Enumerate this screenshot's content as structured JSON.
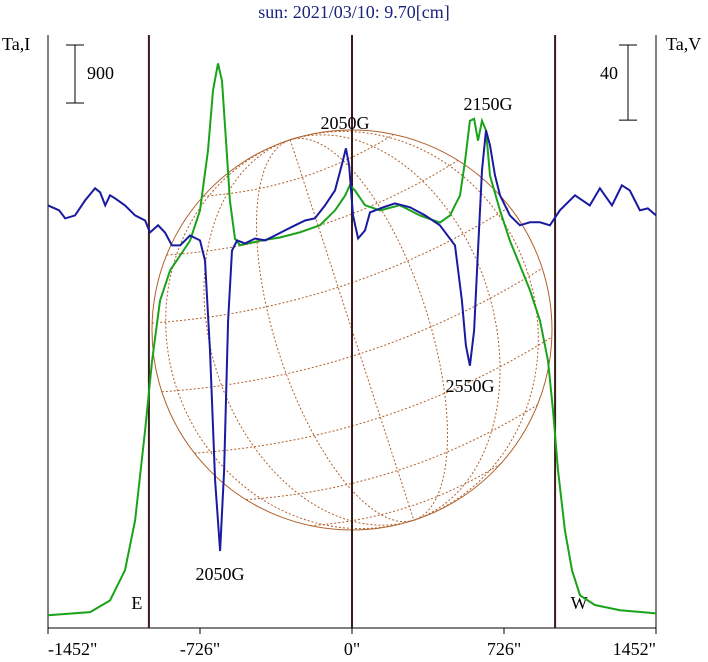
{
  "chart_data": {
    "type": "line",
    "title": "sun: 2021/03/10: 9.70[cm]",
    "y_label": "Ta,I",
    "y2_label": "Ta,V",
    "xlim": [
      -1452,
      1452
    ],
    "xticks": [
      {
        "value": -1452,
        "label": "-1452\""
      },
      {
        "value": -726,
        "label": "-726\""
      },
      {
        "value": 0,
        "label": "0\""
      },
      {
        "value": 726,
        "label": "726\""
      },
      {
        "value": 1452,
        "label": "1452\""
      }
    ],
    "ylim": [
      -150,
      9000
    ],
    "y2lim": [
      -218,
      96
    ],
    "scale_bars": [
      {
        "value": 900,
        "axis": "y"
      },
      {
        "value": 40,
        "axis": "y2"
      }
    ],
    "vlines": [
      -970,
      0,
      970
    ],
    "limb_labels": [
      "E",
      "W"
    ],
    "annotations": [
      "2050G",
      "2050G",
      "2150G",
      "2550G"
    ],
    "series": [
      {
        "name": "I",
        "color": "#1aa31a",
        "axis": "y",
        "x": [
          -1452,
          -1251,
          -1156,
          -1084,
          -1036,
          -988,
          -955,
          -917,
          -869,
          -821,
          -774,
          -726,
          -688,
          -664,
          -640,
          -621,
          -602,
          -583,
          -559,
          -535,
          -439,
          -344,
          -248,
          -153,
          -81,
          -33,
          -10,
          14,
          62,
          134,
          229,
          325,
          420,
          468,
          492,
          516,
          540,
          563,
          583,
          602,
          621,
          640,
          659,
          707,
          754,
          802,
          850,
          898,
          936,
          960,
          984,
          1017,
          1051,
          1089,
          1160,
          1280,
          1452
        ],
        "values": [
          0,
          50,
          230,
          700,
          1470,
          2870,
          3950,
          4880,
          5350,
          5580,
          5810,
          6280,
          7210,
          8140,
          8560,
          8290,
          7360,
          6430,
          5840,
          5740,
          5810,
          5860,
          5940,
          6050,
          6280,
          6510,
          6670,
          6590,
          6360,
          6280,
          6360,
          6200,
          6090,
          6200,
          6360,
          6510,
          7050,
          7670,
          7700,
          7360,
          7670,
          7520,
          6820,
          6280,
          5810,
          5430,
          5040,
          4570,
          3950,
          3180,
          2250,
          1320,
          700,
          310,
          160,
          80,
          30
        ]
      },
      {
        "name": "V",
        "color": "#1a1aa0",
        "axis": "y2",
        "x": [
          -1452,
          -1399,
          -1370,
          -1323,
          -1275,
          -1227,
          -1203,
          -1179,
          -1156,
          -1132,
          -1084,
          -1036,
          -988,
          -965,
          -926,
          -893,
          -860,
          -821,
          -774,
          -726,
          -702,
          -678,
          -654,
          -630,
          -611,
          -592,
          -573,
          -549,
          -511,
          -463,
          -415,
          -368,
          -320,
          -272,
          -224,
          -177,
          -129,
          -81,
          -43,
          -29,
          -14,
          5,
          29,
          62,
          86,
          134,
          205,
          277,
          349,
          420,
          492,
          525,
          544,
          563,
          583,
          602,
          621,
          640,
          659,
          683,
          707,
          754,
          802,
          850,
          898,
          945,
          993,
          1065,
          1136,
          1184,
          1242,
          1289,
          1327,
          1375,
          1413,
          1452
        ],
        "values": [
          5.3,
          2.7,
          -1.6,
          0,
          8,
          14.4,
          12.3,
          5.3,
          10.7,
          9.1,
          5.3,
          0,
          -2.7,
          -9.1,
          -5.3,
          -9.1,
          -16,
          -16,
          -10.7,
          -13.3,
          -24,
          -72,
          -141,
          -178.6,
          -136,
          -56,
          -18.7,
          -13.3,
          -14.9,
          -12.3,
          -13.3,
          -10.7,
          -8,
          -5.3,
          -2.7,
          -1.6,
          5.3,
          13.3,
          29.3,
          35.7,
          26.7,
          0,
          -12.3,
          -8,
          1.6,
          3.7,
          6.4,
          4.3,
          0,
          -5.3,
          -16,
          -45.3,
          -69.3,
          -80,
          -61.3,
          -18.7,
          24,
          45.3,
          37.3,
          21.3,
          10.7,
          0,
          -5.3,
          -3.7,
          -3.7,
          -5.3,
          2.7,
          10.7,
          5.3,
          14.4,
          5.3,
          16,
          13.3,
          2.7,
          3.7,
          0
        ]
      }
    ]
  }
}
